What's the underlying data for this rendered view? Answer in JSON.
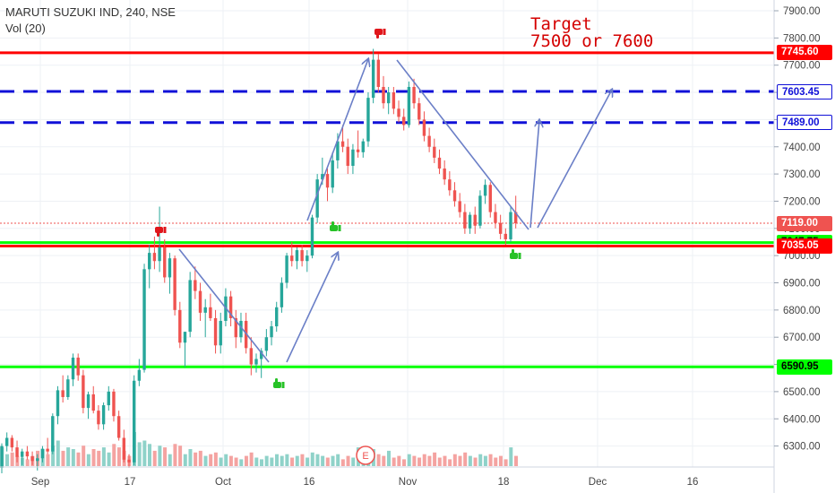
{
  "header": {
    "title": "MARUTI SUZUKI IND, 240, NSE",
    "volume_label": "Vol (20)"
  },
  "annotation": {
    "line1": "Target",
    "line2": "7500 or 7600"
  },
  "earnings_marker": "E",
  "colors": {
    "bull": "#26a69a",
    "bear": "#ef5350",
    "vol_bull": "#8fd2c9",
    "vol_bear": "#f4a3a1",
    "resistance": "#ff0000",
    "support": "#00ff00",
    "target": "#1010d8",
    "arrow": "#6b7fc7"
  },
  "chart_data": {
    "type": "candlestick",
    "title": "MARUTI SUZUKI IND, 240, NSE",
    "y_axis": {
      "ylim": [
        6200,
        7950
      ],
      "ticks": [
        6300,
        6400,
        6500,
        6600,
        6700,
        6800,
        6900,
        7000,
        7100,
        7200,
        7300,
        7400,
        7500,
        7600,
        7700,
        7800,
        7900
      ],
      "tick_labels": [
        "6300.00",
        "6400.00",
        "6500.00",
        "6600.00",
        "6700.00",
        "6800.00",
        "6900.00",
        "7000.00",
        "7100.00",
        "7200.00",
        "7300.00",
        "7400.00",
        "7500.00",
        "7600.00",
        "7700.00",
        "7800.00",
        "7900.00"
      ]
    },
    "x_axis": {
      "labels": [
        "Sep",
        "17",
        "Oct",
        "16",
        "Nov",
        "18",
        "Dec",
        "16"
      ]
    },
    "grid": true,
    "horizontal_levels": [
      {
        "price": 7745.6,
        "label": "7745.60",
        "style": "resistance"
      },
      {
        "price": 7603.45,
        "label": "7603.45",
        "style": "target"
      },
      {
        "price": 7489.0,
        "label": "7489.00",
        "style": "target"
      },
      {
        "price": 7119.0,
        "label": "7119.00",
        "style": "last"
      },
      {
        "price": 7047.75,
        "label": "7047.75",
        "style": "support"
      },
      {
        "price": 7035.05,
        "label": "7035.05",
        "style": "resistance"
      },
      {
        "price": 6590.95,
        "label": "6590.95",
        "style": "support"
      }
    ],
    "candles": [
      [
        6220,
        6310,
        6200,
        6300
      ],
      [
        6300,
        6350,
        6280,
        6330
      ],
      [
        6330,
        6340,
        6280,
        6295
      ],
      [
        6295,
        6320,
        6240,
        6260
      ],
      [
        6260,
        6290,
        6230,
        6280
      ],
      [
        6280,
        6300,
        6250,
        6262
      ],
      [
        6262,
        6280,
        6230,
        6245
      ],
      [
        6245,
        6270,
        6210,
        6255
      ],
      [
        6255,
        6300,
        6240,
        6290
      ],
      [
        6290,
        6330,
        6270,
        6280
      ],
      [
        6280,
        6420,
        6270,
        6410
      ],
      [
        6410,
        6520,
        6380,
        6505
      ],
      [
        6505,
        6560,
        6460,
        6480
      ],
      [
        6480,
        6560,
        6470,
        6545
      ],
      [
        6545,
        6640,
        6520,
        6625
      ],
      [
        6625,
        6640,
        6540,
        6560
      ],
      [
        6560,
        6580,
        6420,
        6440
      ],
      [
        6440,
        6500,
        6400,
        6490
      ],
      [
        6490,
        6520,
        6420,
        6430
      ],
      [
        6430,
        6450,
        6360,
        6380
      ],
      [
        6380,
        6460,
        6360,
        6450
      ],
      [
        6450,
        6520,
        6430,
        6500
      ],
      [
        6500,
        6510,
        6390,
        6410
      ],
      [
        6410,
        6430,
        6320,
        6330
      ],
      [
        6330,
        6360,
        6240,
        6250
      ],
      [
        6250,
        6270,
        6220,
        6240
      ],
      [
        6240,
        6560,
        6230,
        6540
      ],
      [
        6540,
        6620,
        6520,
        6580
      ],
      [
        6580,
        6970,
        6570,
        6950
      ],
      [
        6950,
        7040,
        6880,
        7010
      ],
      [
        7010,
        7070,
        6950,
        6980
      ],
      [
        6980,
        7180,
        6940,
        7030
      ],
      [
        7030,
        7060,
        6900,
        6920
      ],
      [
        6920,
        7010,
        6860,
        6990
      ],
      [
        6990,
        7000,
        6780,
        6800
      ],
      [
        6800,
        6830,
        6660,
        6680
      ],
      [
        6680,
        6720,
        6590,
        6720
      ],
      [
        6720,
        6940,
        6700,
        6910
      ],
      [
        6910,
        6960,
        6840,
        6870
      ],
      [
        6870,
        6900,
        6760,
        6790
      ],
      [
        6790,
        6840,
        6700,
        6810
      ],
      [
        6810,
        6860,
        6760,
        6770
      ],
      [
        6770,
        6800,
        6640,
        6670
      ],
      [
        6670,
        6790,
        6640,
        6760
      ],
      [
        6760,
        6880,
        6740,
        6850
      ],
      [
        6850,
        6870,
        6740,
        6770
      ],
      [
        6770,
        6800,
        6660,
        6700
      ],
      [
        6700,
        6790,
        6680,
        6760
      ],
      [
        6760,
        6790,
        6640,
        6660
      ],
      [
        6660,
        6700,
        6560,
        6600
      ],
      [
        6600,
        6640,
        6570,
        6620
      ],
      [
        6620,
        6660,
        6550,
        6650
      ],
      [
        6650,
        6730,
        6630,
        6700
      ],
      [
        6700,
        6760,
        6670,
        6740
      ],
      [
        6740,
        6830,
        6720,
        6810
      ],
      [
        6810,
        6920,
        6790,
        6900
      ],
      [
        6900,
        7010,
        6880,
        7000
      ],
      [
        7000,
        7050,
        6960,
        6980
      ],
      [
        6980,
        7030,
        6950,
        7020
      ],
      [
        7020,
        7040,
        6960,
        6980
      ],
      [
        6980,
        7020,
        6940,
        7000
      ],
      [
        7000,
        7150,
        6990,
        7140
      ],
      [
        7140,
        7300,
        7120,
        7280
      ],
      [
        7280,
        7360,
        7260,
        7300
      ],
      [
        7300,
        7320,
        7200,
        7250
      ],
      [
        7250,
        7380,
        7230,
        7350
      ],
      [
        7350,
        7450,
        7320,
        7420
      ],
      [
        7420,
        7480,
        7380,
        7400
      ],
      [
        7400,
        7430,
        7300,
        7330
      ],
      [
        7330,
        7410,
        7300,
        7390
      ],
      [
        7390,
        7460,
        7360,
        7380
      ],
      [
        7380,
        7430,
        7360,
        7420
      ],
      [
        7420,
        7600,
        7400,
        7580
      ],
      [
        7580,
        7760,
        7560,
        7720
      ],
      [
        7720,
        7740,
        7600,
        7620
      ],
      [
        7620,
        7660,
        7540,
        7560
      ],
      [
        7560,
        7620,
        7520,
        7600
      ],
      [
        7600,
        7620,
        7520,
        7540
      ],
      [
        7540,
        7570,
        7490,
        7510
      ],
      [
        7510,
        7540,
        7460,
        7480
      ],
      [
        7480,
        7640,
        7470,
        7620
      ],
      [
        7620,
        7650,
        7540,
        7560
      ],
      [
        7560,
        7580,
        7480,
        7500
      ],
      [
        7500,
        7530,
        7420,
        7440
      ],
      [
        7440,
        7470,
        7380,
        7400
      ],
      [
        7400,
        7430,
        7340,
        7360
      ],
      [
        7360,
        7390,
        7300,
        7320
      ],
      [
        7320,
        7350,
        7260,
        7280
      ],
      [
        7280,
        7310,
        7220,
        7240
      ],
      [
        7240,
        7270,
        7180,
        7200
      ],
      [
        7200,
        7230,
        7140,
        7160
      ],
      [
        7160,
        7190,
        7080,
        7100
      ],
      [
        7100,
        7160,
        7080,
        7150
      ],
      [
        7150,
        7180,
        7080,
        7110
      ],
      [
        7110,
        7240,
        7100,
        7220
      ],
      [
        7220,
        7280,
        7190,
        7260
      ],
      [
        7260,
        7270,
        7140,
        7160
      ],
      [
        7160,
        7190,
        7100,
        7120
      ],
      [
        7120,
        7150,
        7060,
        7080
      ],
      [
        7080,
        7100,
        7040,
        7060
      ],
      [
        7060,
        7180,
        7050,
        7160
      ],
      [
        7160,
        7220,
        7100,
        7119
      ]
    ],
    "volume": [
      {
        "v": 0.55,
        "up": true
      },
      {
        "v": 0.35,
        "up": true
      },
      {
        "v": 0.4,
        "up": false
      },
      {
        "v": 0.3,
        "up": false
      },
      {
        "v": 0.25,
        "up": true
      },
      {
        "v": 0.2,
        "up": false
      },
      {
        "v": 0.3,
        "up": false
      },
      {
        "v": 0.45,
        "up": false
      },
      {
        "v": 0.5,
        "up": true
      },
      {
        "v": 0.35,
        "up": false
      },
      {
        "v": 0.6,
        "up": true
      },
      {
        "v": 0.75,
        "up": true
      },
      {
        "v": 0.45,
        "up": false
      },
      {
        "v": 0.55,
        "up": true
      },
      {
        "v": 0.5,
        "up": true
      },
      {
        "v": 0.4,
        "up": false
      },
      {
        "v": 0.6,
        "up": false
      },
      {
        "v": 0.35,
        "up": true
      },
      {
        "v": 0.5,
        "up": false
      },
      {
        "v": 0.45,
        "up": false
      },
      {
        "v": 0.55,
        "up": true
      },
      {
        "v": 0.4,
        "up": true
      },
      {
        "v": 0.65,
        "up": false
      },
      {
        "v": 0.55,
        "up": false
      },
      {
        "v": 0.45,
        "up": false
      },
      {
        "v": 0.3,
        "up": false
      },
      {
        "v": 1.0,
        "up": true
      },
      {
        "v": 0.7,
        "up": true
      },
      {
        "v": 0.75,
        "up": true
      },
      {
        "v": 0.65,
        "up": true
      },
      {
        "v": 0.45,
        "up": false
      },
      {
        "v": 0.6,
        "up": true
      },
      {
        "v": 0.55,
        "up": false
      },
      {
        "v": 0.35,
        "up": true
      },
      {
        "v": 0.65,
        "up": false
      },
      {
        "v": 0.6,
        "up": false
      },
      {
        "v": 0.35,
        "up": true
      },
      {
        "v": 0.5,
        "up": true
      },
      {
        "v": 0.4,
        "up": false
      },
      {
        "v": 0.45,
        "up": false
      },
      {
        "v": 0.3,
        "up": true
      },
      {
        "v": 0.35,
        "up": false
      },
      {
        "v": 0.4,
        "up": false
      },
      {
        "v": 0.25,
        "up": true
      },
      {
        "v": 0.35,
        "up": true
      },
      {
        "v": 0.3,
        "up": false
      },
      {
        "v": 0.25,
        "up": false
      },
      {
        "v": 0.2,
        "up": true
      },
      {
        "v": 0.3,
        "up": false
      },
      {
        "v": 0.4,
        "up": false
      },
      {
        "v": 0.25,
        "up": true
      },
      {
        "v": 0.2,
        "up": true
      },
      {
        "v": 0.3,
        "up": true
      },
      {
        "v": 0.25,
        "up": true
      },
      {
        "v": 0.35,
        "up": true
      },
      {
        "v": 0.3,
        "up": true
      },
      {
        "v": 0.35,
        "up": true
      },
      {
        "v": 0.25,
        "up": false
      },
      {
        "v": 0.3,
        "up": true
      },
      {
        "v": 0.35,
        "up": false
      },
      {
        "v": 0.25,
        "up": true
      },
      {
        "v": 0.4,
        "up": true
      },
      {
        "v": 0.35,
        "up": true
      },
      {
        "v": 0.3,
        "up": true
      },
      {
        "v": 0.25,
        "up": false
      },
      {
        "v": 0.3,
        "up": true
      },
      {
        "v": 0.35,
        "up": true
      },
      {
        "v": 0.2,
        "up": false
      },
      {
        "v": 0.3,
        "up": false
      },
      {
        "v": 0.25,
        "up": true
      },
      {
        "v": 0.55,
        "up": true
      },
      {
        "v": 0.45,
        "up": true
      },
      {
        "v": 0.4,
        "up": true
      },
      {
        "v": 0.5,
        "up": true
      },
      {
        "v": 0.35,
        "up": false
      },
      {
        "v": 0.3,
        "up": false
      },
      {
        "v": 0.45,
        "up": true
      },
      {
        "v": 0.25,
        "up": false
      },
      {
        "v": 0.3,
        "up": false
      },
      {
        "v": 0.2,
        "up": false
      },
      {
        "v": 0.35,
        "up": true
      },
      {
        "v": 0.3,
        "up": false
      },
      {
        "v": 0.25,
        "up": false
      },
      {
        "v": 0.35,
        "up": false
      },
      {
        "v": 0.3,
        "up": false
      },
      {
        "v": 0.4,
        "up": false
      },
      {
        "v": 0.25,
        "up": false
      },
      {
        "v": 0.3,
        "up": false
      },
      {
        "v": 0.2,
        "up": false
      },
      {
        "v": 0.35,
        "up": false
      },
      {
        "v": 0.3,
        "up": false
      },
      {
        "v": 0.4,
        "up": false
      },
      {
        "v": 0.3,
        "up": true
      },
      {
        "v": 0.25,
        "up": false
      },
      {
        "v": 0.35,
        "up": true
      },
      {
        "v": 0.3,
        "up": true
      },
      {
        "v": 0.35,
        "up": false
      },
      {
        "v": 0.25,
        "up": false
      },
      {
        "v": 0.3,
        "up": false
      },
      {
        "v": 0.2,
        "up": false
      },
      {
        "v": 0.55,
        "up": true
      },
      {
        "v": 0.3,
        "up": false
      }
    ]
  }
}
